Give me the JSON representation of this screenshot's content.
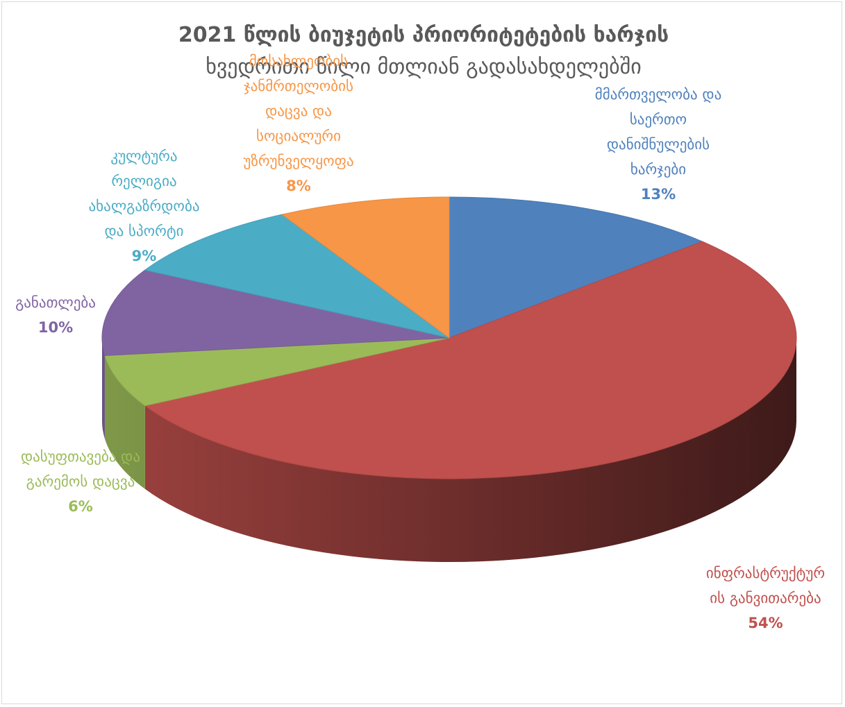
{
  "chart_data": {
    "type": "pie",
    "title": "2021 წლის ბიუჯეტის პრიორიტეტების ხარჯის",
    "subtitle": "ხვედრითი წილი მთლიან გადასახდელებში",
    "three_d": true,
    "series": [
      {
        "label_lines": [
          "მმართველობა და",
          "საერთო",
          "დანიშნულების",
          "ხარჯები"
        ],
        "percent_label": "13%",
        "value": 13,
        "color": "#4f81bd"
      },
      {
        "label_lines": [
          "ინფრასტრუქტურ",
          "ის განვითარება"
        ],
        "percent_label": "54%",
        "value": 54,
        "color": "#c0504d"
      },
      {
        "label_lines": [
          "დასუფთავება და",
          "გარემოს დაცვა"
        ],
        "percent_label": "6%",
        "value": 6,
        "color": "#9bbb59"
      },
      {
        "label_lines": [
          "განათლება"
        ],
        "percent_label": "10%",
        "value": 10,
        "color": "#8064a2"
      },
      {
        "label_lines": [
          "კულტურა",
          "რელიგია",
          "ახალგაზრდობა",
          "და სპორტი"
        ],
        "percent_label": "9%",
        "value": 9,
        "color": "#4bacc6"
      },
      {
        "label_lines": [
          "მოსახლეობის",
          "ჯანმრთელობის",
          "დაცვა და",
          "სოციალური",
          "უზრუნველყოფა"
        ],
        "percent_label": "8%",
        "value": 8,
        "color": "#f79646"
      }
    ]
  }
}
